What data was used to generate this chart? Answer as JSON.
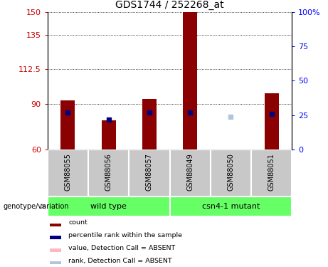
{
  "title": "GDS1744 / 252268_at",
  "samples": [
    "GSM88055",
    "GSM88056",
    "GSM88057",
    "GSM88049",
    "GSM88050",
    "GSM88051"
  ],
  "ylim_left": [
    60,
    150
  ],
  "ylim_right": [
    0,
    100
  ],
  "yticks_left": [
    60,
    90,
    112.5,
    135,
    150
  ],
  "yticks_right": [
    0,
    25,
    50,
    75,
    100
  ],
  "ytick_right_labels": [
    "0",
    "25",
    "50",
    "75",
    "100%"
  ],
  "bar_values": [
    92,
    79,
    93,
    150,
    60,
    97
  ],
  "bar_absent": [
    false,
    false,
    false,
    false,
    true,
    false
  ],
  "rank_values": [
    27,
    22,
    27,
    27,
    24,
    26
  ],
  "rank_absent": [
    false,
    false,
    false,
    false,
    true,
    false
  ],
  "bar_color_present": "#8B0000",
  "bar_color_absent": "#FFB6C1",
  "rank_color_present": "#000080",
  "rank_color_absent": "#B0C4DE",
  "bar_width": 0.35,
  "wt_group": [
    0,
    1,
    2
  ],
  "mut_group": [
    3,
    4,
    5
  ],
  "wt_label": "wild type",
  "mut_label": "csn4-1 mutant",
  "group_color": "#66FF66",
  "sample_box_color": "#C8C8C8",
  "genotype_label": "genotype/variation",
  "legend_items": [
    {
      "label": "count",
      "color": "#8B0000"
    },
    {
      "label": "percentile rank within the sample",
      "color": "#000080"
    },
    {
      "label": "value, Detection Call = ABSENT",
      "color": "#FFB6C1"
    },
    {
      "label": "rank, Detection Call = ABSENT",
      "color": "#B0C4DE"
    }
  ]
}
